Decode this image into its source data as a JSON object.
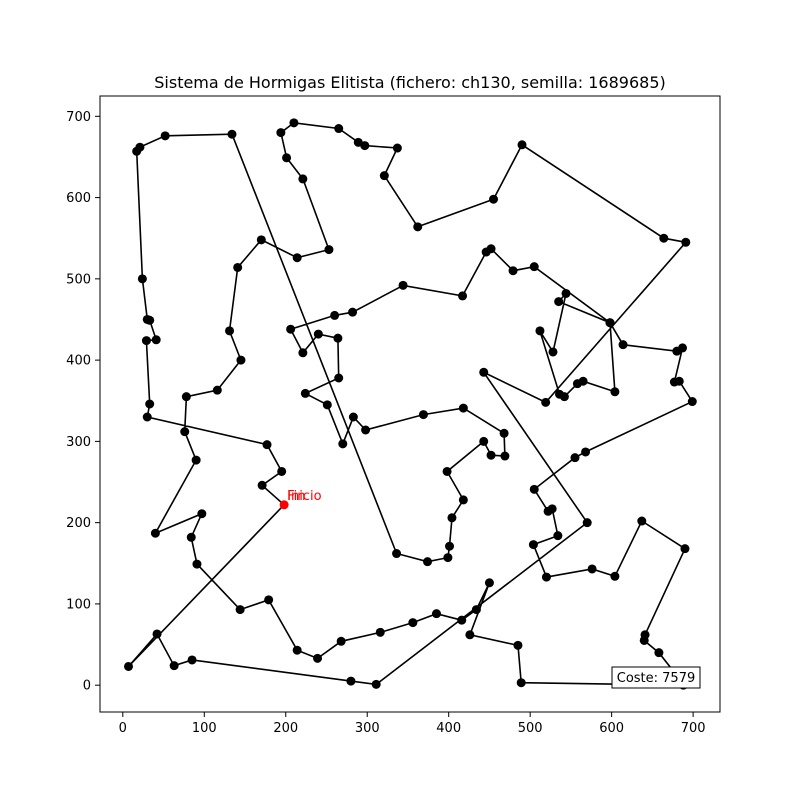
{
  "chart_data": {
    "type": "line",
    "title": "Sistema de Hormigas Elitista (fichero: ch130, semilla: 1689685)",
    "xlim": [
      -28,
      733
    ],
    "ylim": [
      -33,
      725
    ],
    "xticks": [
      0,
      100,
      200,
      300,
      400,
      500,
      600,
      700
    ],
    "yticks": [
      0,
      100,
      200,
      300,
      400,
      500,
      600,
      700
    ],
    "grid": false,
    "line_color": "#000000",
    "start_color": "#ff0000",
    "start_label": "Inicio",
    "end_label": "Fin",
    "cost_label": "Coste: 7579",
    "tour": [
      [
        198,
        222
      ],
      [
        7,
        23
      ],
      [
        42,
        63
      ],
      [
        63,
        24
      ],
      [
        85,
        31
      ],
      [
        280,
        5
      ],
      [
        311,
        1
      ],
      [
        570,
        200
      ],
      [
        443,
        385
      ],
      [
        519,
        348
      ],
      [
        691,
        545
      ],
      [
        664,
        550
      ],
      [
        490,
        665
      ],
      [
        455,
        598
      ],
      [
        362,
        564
      ],
      [
        321,
        627
      ],
      [
        337,
        661
      ],
      [
        297,
        664
      ],
      [
        289,
        668
      ],
      [
        265,
        685
      ],
      [
        210,
        692
      ],
      [
        194,
        680
      ],
      [
        201,
        649
      ],
      [
        221,
        623
      ],
      [
        253,
        536
      ],
      [
        214,
        526
      ],
      [
        170,
        548
      ],
      [
        141,
        514
      ],
      [
        131,
        436
      ],
      [
        145,
        400
      ],
      [
        116,
        363
      ],
      [
        78,
        355
      ],
      [
        76,
        312
      ],
      [
        90,
        277
      ],
      [
        40,
        187
      ],
      [
        97,
        211
      ],
      [
        84,
        182
      ],
      [
        91,
        149
      ],
      [
        144,
        93
      ],
      [
        179,
        105
      ],
      [
        214,
        43
      ],
      [
        239,
        33
      ],
      [
        268,
        54
      ],
      [
        316,
        65
      ],
      [
        356,
        77
      ],
      [
        385,
        88
      ],
      [
        416,
        80
      ],
      [
        434,
        93
      ],
      [
        450,
        126
      ],
      [
        426,
        62
      ],
      [
        485,
        49
      ],
      [
        489,
        3
      ],
      [
        688,
        0
      ],
      [
        676,
        17
      ],
      [
        658,
        40
      ],
      [
        640,
        55
      ],
      [
        641,
        62
      ],
      [
        690,
        168
      ],
      [
        637,
        202
      ],
      [
        604,
        134
      ],
      [
        576,
        143
      ],
      [
        520,
        133
      ],
      [
        504,
        173
      ],
      [
        534,
        184
      ],
      [
        527,
        217
      ],
      [
        522,
        214
      ],
      [
        505,
        241
      ],
      [
        555,
        280
      ],
      [
        568,
        287
      ],
      [
        699,
        349
      ],
      [
        683,
        374
      ],
      [
        677,
        373
      ],
      [
        687,
        415
      ],
      [
        680,
        411
      ],
      [
        614,
        419
      ],
      [
        598,
        446
      ],
      [
        535,
        472
      ],
      [
        544,
        482
      ],
      [
        528,
        410
      ],
      [
        512,
        436
      ],
      [
        536,
        358
      ],
      [
        542,
        355
      ],
      [
        558,
        371
      ],
      [
        565,
        374
      ],
      [
        604,
        361
      ],
      [
        598,
        446
      ],
      [
        505,
        515
      ],
      [
        479,
        510
      ],
      [
        452,
        537
      ],
      [
        446,
        533
      ],
      [
        417,
        479
      ],
      [
        344,
        492
      ],
      [
        282,
        459
      ],
      [
        260,
        455
      ],
      [
        206,
        438
      ],
      [
        221,
        409
      ],
      [
        240,
        432
      ],
      [
        264,
        427
      ],
      [
        265,
        378
      ],
      [
        224,
        359
      ],
      [
        251,
        345
      ],
      [
        270,
        297
      ],
      [
        283,
        330
      ],
      [
        298,
        314
      ],
      [
        369,
        333
      ],
      [
        418,
        341
      ],
      [
        468,
        310
      ],
      [
        469,
        282
      ],
      [
        452,
        283
      ],
      [
        443,
        300
      ],
      [
        398,
        263
      ],
      [
        418,
        228
      ],
      [
        404,
        206
      ],
      [
        401,
        171
      ],
      [
        399,
        157
      ],
      [
        374,
        152
      ],
      [
        336,
        162
      ],
      [
        134,
        678
      ],
      [
        52,
        676
      ],
      [
        21,
        662
      ],
      [
        17,
        657
      ],
      [
        24,
        500
      ],
      [
        30,
        450
      ],
      [
        33,
        449
      ],
      [
        41,
        425
      ],
      [
        29,
        424
      ],
      [
        33,
        346
      ],
      [
        30,
        330
      ],
      [
        177,
        296
      ],
      [
        195,
        263
      ],
      [
        171,
        246
      ],
      [
        198,
        222
      ]
    ]
  }
}
